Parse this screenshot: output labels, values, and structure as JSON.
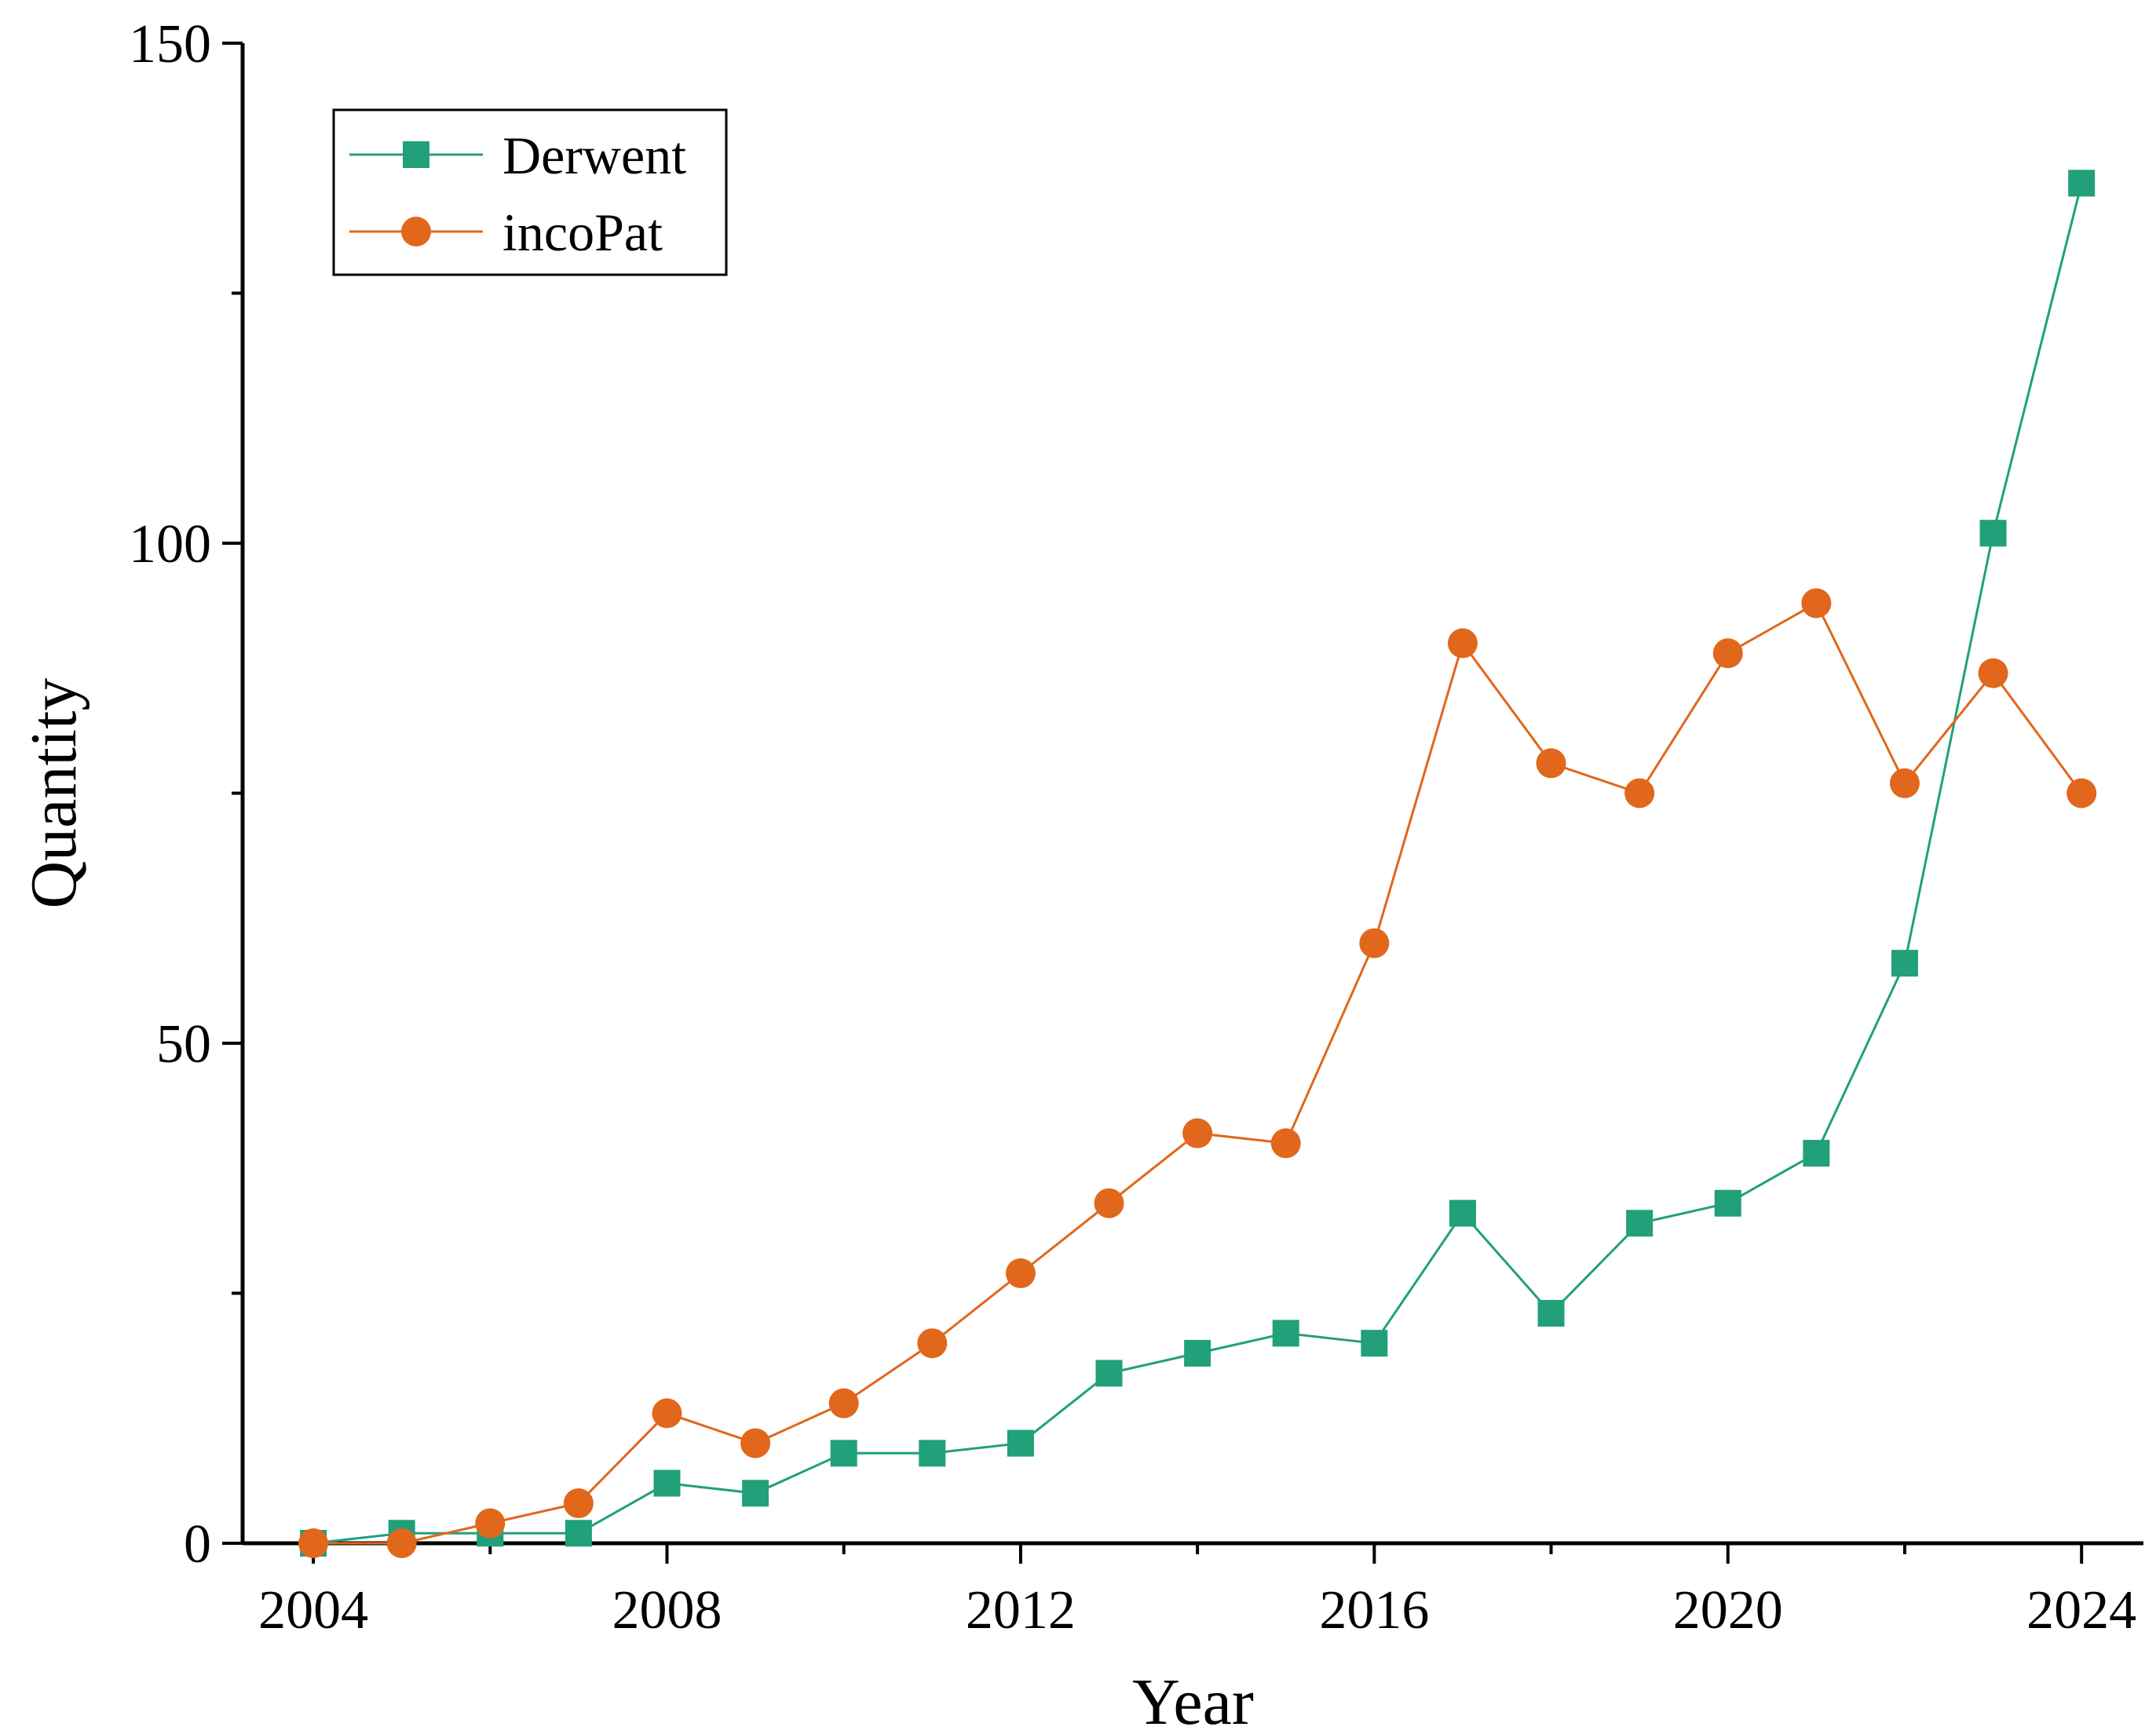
{
  "chart_data": {
    "type": "line",
    "xlabel": "Year",
    "ylabel": "Quantity",
    "xlim": [
      2003.2,
      2024.7
    ],
    "ylim": [
      0,
      150
    ],
    "x_ticks_major": [
      2004,
      2008,
      2012,
      2016,
      2020,
      2024
    ],
    "x_ticks_minor": [
      2006,
      2010,
      2014,
      2018,
      2022
    ],
    "y_ticks_major": [
      0,
      50,
      100,
      150
    ],
    "y_ticks_minor": [
      25,
      75,
      125
    ],
    "grid": false,
    "legend_position": "top-left",
    "x": [
      2004,
      2005,
      2006,
      2007,
      2008,
      2009,
      2010,
      2011,
      2012,
      2013,
      2014,
      2015,
      2016,
      2017,
      2018,
      2019,
      2020,
      2021,
      2022,
      2023,
      2024
    ],
    "series": [
      {
        "name": "Derwent",
        "color": "#21a07a",
        "marker": "square",
        "values": [
          0,
          1,
          1,
          1,
          6,
          5,
          9,
          9,
          10,
          17,
          19,
          21,
          20,
          33,
          23,
          32,
          34,
          39,
          58,
          101,
          136
        ]
      },
      {
        "name": "incoPat",
        "color": "#e0671c",
        "marker": "circle",
        "values": [
          0,
          0,
          2,
          4,
          13,
          10,
          14,
          20,
          27,
          34,
          41,
          40,
          60,
          90,
          78,
          75,
          89,
          94,
          76,
          87,
          75
        ]
      }
    ]
  }
}
